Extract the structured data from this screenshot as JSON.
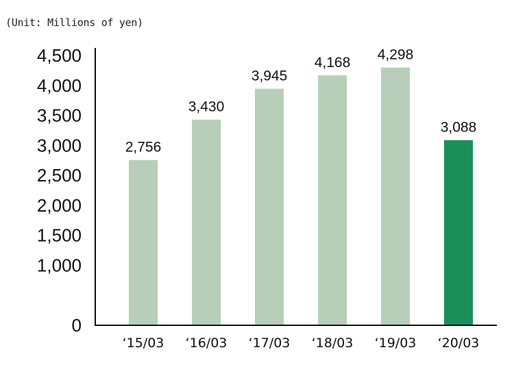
{
  "unit_note": "(Unit: Millions of yen)",
  "chart_data": {
    "type": "bar",
    "title": "",
    "xlabel": "",
    "ylabel": "",
    "categories": [
      "‘15/03",
      "‘16/03",
      "‘17/03",
      "‘18/03",
      "‘19/03",
      "‘20/03"
    ],
    "values": [
      2756,
      3430,
      3945,
      4168,
      4298,
      3088
    ],
    "data_labels": [
      "2,756",
      "3,430",
      "3,945",
      "4,168",
      "4,298",
      "3,088"
    ],
    "ylim": [
      0,
      4500
    ],
    "yticks": [
      0,
      1000,
      1500,
      2000,
      2500,
      3000,
      3500,
      4000,
      4500
    ],
    "ytick_labels": [
      "0",
      "1,000",
      "1,500",
      "2,000",
      "2,500",
      "3,000",
      "3,500",
      "4,000",
      "4,500"
    ],
    "grid": false,
    "bar_colors": [
      "#b7cfb8",
      "#b7cfb8",
      "#b7cfb8",
      "#b7cfb8",
      "#b7cfb8",
      "#1b8f5a"
    ],
    "axis_color": "#111111"
  }
}
